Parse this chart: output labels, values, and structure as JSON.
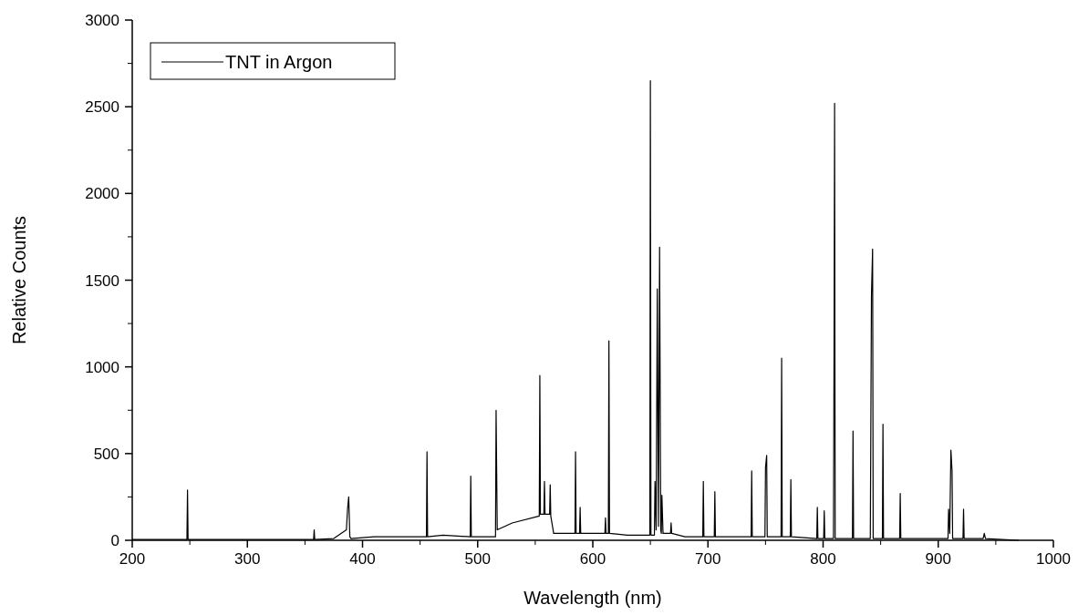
{
  "chart_data": {
    "type": "line",
    "xlabel": "Wavelength (nm)",
    "ylabel": "Relative Counts",
    "xlim": [
      200,
      1000
    ],
    "ylim": [
      0,
      3000
    ],
    "xticks": [
      200,
      300,
      400,
      500,
      600,
      700,
      800,
      900,
      1000
    ],
    "yticks": [
      0,
      500,
      1000,
      1500,
      2000,
      2500,
      3000
    ],
    "grid": false,
    "legend": "top left",
    "line_style": "solid",
    "series": [
      {
        "name": "TNT in Argon",
        "color": "#000000",
        "x": [
          200,
          247.5,
          248,
          248.5,
          350,
          357.5,
          358,
          358.5,
          375,
          386,
          387,
          388,
          389,
          390,
          410,
          455.5,
          456,
          456.5,
          470,
          493.5,
          494,
          494.5,
          515.5,
          516,
          517,
          530,
          553.5,
          554,
          554.5,
          557.5,
          558,
          558.5,
          562.5,
          563,
          563.5,
          566,
          584.5,
          585,
          585.5,
          588.5,
          589,
          589.5,
          610.5,
          611,
          611.5,
          613.5,
          614,
          614.5,
          630,
          649.5,
          650,
          650.5,
          653.5,
          654,
          655,
          656,
          657,
          658,
          659,
          659.5,
          660,
          661,
          667.5,
          668,
          668.5,
          680,
          695.5,
          696,
          696.5,
          705.5,
          706,
          706.5,
          737.5,
          738,
          738.5,
          749.5,
          750,
          751,
          751.5,
          763.5,
          764,
          764.5,
          771.5,
          772,
          772.5,
          794.5,
          795,
          795.5,
          800.5,
          801,
          801.5,
          809,
          809.5,
          810,
          810.5,
          825.5,
          826,
          826.5,
          841,
          842,
          843,
          843.5,
          851.5,
          852,
          852.5,
          866.5,
          867,
          867.5,
          908.5,
          909,
          910,
          911,
          912,
          912.5,
          921.5,
          922,
          922.5,
          939,
          940,
          941,
          970
        ],
        "values": [
          5,
          5,
          290,
          5,
          5,
          5,
          60,
          5,
          10,
          60,
          180,
          250,
          20,
          10,
          20,
          20,
          510,
          20,
          30,
          20,
          370,
          20,
          20,
          750,
          60,
          100,
          140,
          950,
          150,
          150,
          340,
          150,
          150,
          320,
          140,
          40,
          40,
          510,
          40,
          40,
          190,
          40,
          40,
          130,
          40,
          40,
          1150,
          40,
          30,
          30,
          2650,
          30,
          30,
          340,
          60,
          1450,
          80,
          1690,
          60,
          40,
          260,
          40,
          40,
          100,
          40,
          20,
          20,
          340,
          20,
          20,
          280,
          20,
          20,
          400,
          20,
          20,
          420,
          490,
          20,
          20,
          1050,
          20,
          20,
          350,
          20,
          10,
          190,
          10,
          10,
          170,
          10,
          10,
          1060,
          2520,
          10,
          10,
          630,
          10,
          10,
          1410,
          1680,
          10,
          10,
          670,
          10,
          10,
          270,
          10,
          10,
          180,
          40,
          520,
          400,
          10,
          10,
          180,
          10,
          10,
          40,
          10,
          0
        ]
      }
    ]
  }
}
